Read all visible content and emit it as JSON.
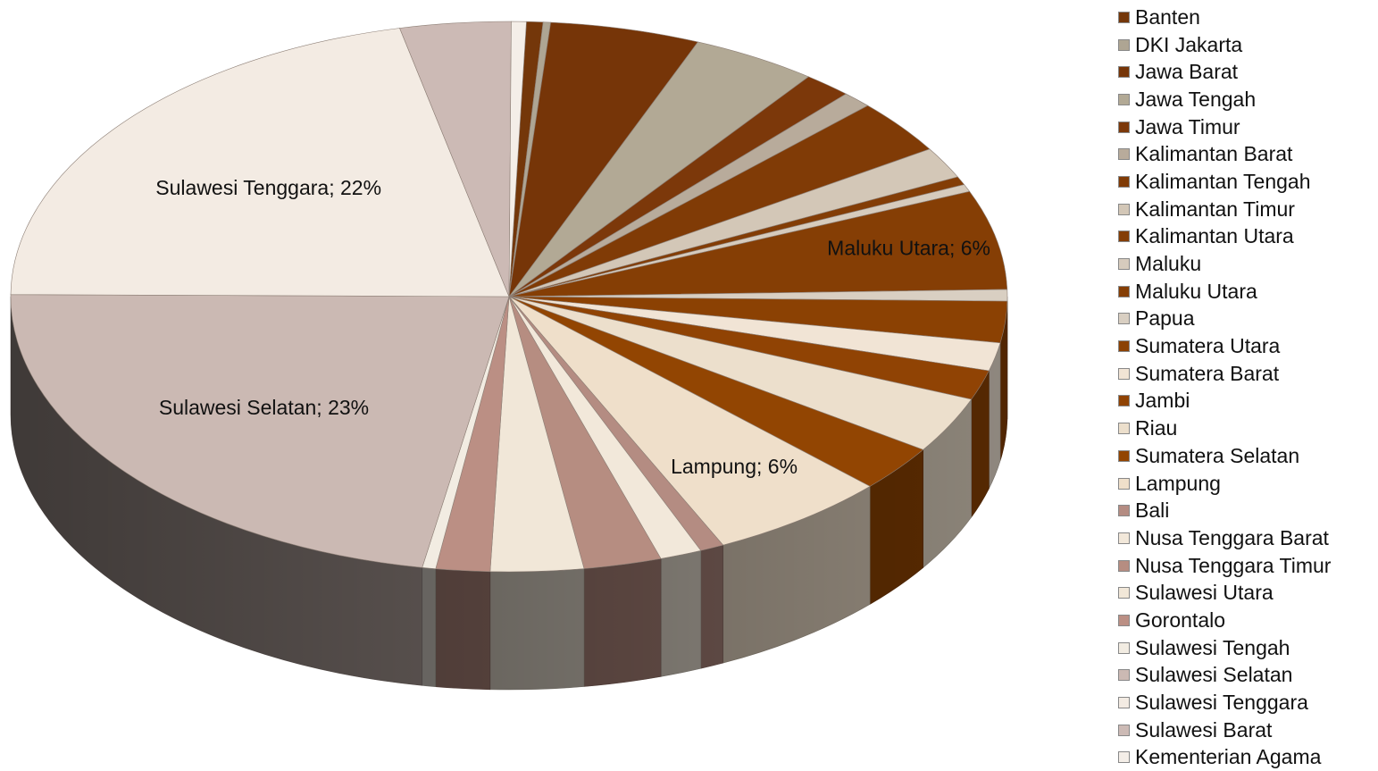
{
  "chart_data": {
    "type": "pie",
    "style": "3d-exploded-fan",
    "legend_position": "right",
    "data_unit": "percent",
    "slices": [
      {
        "name": "Banten",
        "value": 0.55,
        "color": "#74370a"
      },
      {
        "name": "DKI Jakarta",
        "value": 0.25,
        "color": "#aea593"
      },
      {
        "name": "Jawa Barat",
        "value": 5.0,
        "color": "#763508"
      },
      {
        "name": "Jawa Tengah",
        "value": 4.2,
        "color": "#b2a995"
      },
      {
        "name": "Jawa Timur",
        "value": 1.6,
        "color": "#7c380a"
      },
      {
        "name": "Kalimantan Barat",
        "value": 1.0,
        "color": "#b8ab9b"
      },
      {
        "name": "Kalimantan Tengah",
        "value": 3.3,
        "color": "#803b06"
      },
      {
        "name": "Kalimantan Timur",
        "value": 1.9,
        "color": "#d3c7b7"
      },
      {
        "name": "Kalimantan Utara",
        "value": 0.5,
        "color": "#833d06"
      },
      {
        "name": "Maluku",
        "value": 0.45,
        "color": "#d6cbbd"
      },
      {
        "name": "Maluku Utara",
        "value": 6.0,
        "color": "#853e05"
      },
      {
        "name": "Papua",
        "value": 0.7,
        "color": "#d9cfc2"
      },
      {
        "name": "Sumatera Utara",
        "value": 2.5,
        "color": "#8b4103"
      },
      {
        "name": "Sumatera Barat",
        "value": 1.7,
        "color": "#f1e4d5"
      },
      {
        "name": "Jambi",
        "value": 1.8,
        "color": "#904304"
      },
      {
        "name": "Riau",
        "value": 3.4,
        "color": "#ecdfcc"
      },
      {
        "name": "Sumatera Selatan",
        "value": 2.8,
        "color": "#924502"
      },
      {
        "name": "Lampung",
        "value": 6.0,
        "color": "#efdfca"
      },
      {
        "name": "Bali",
        "value": 0.8,
        "color": "#b48c82"
      },
      {
        "name": "Nusa Tenggara Barat",
        "value": 1.4,
        "color": "#f2e8da"
      },
      {
        "name": "Nusa Tenggara Timur",
        "value": 2.6,
        "color": "#b68d81"
      },
      {
        "name": "Sulawesi Utara",
        "value": 3.1,
        "color": "#f1e7d8"
      },
      {
        "name": "Gorontalo",
        "value": 1.8,
        "color": "#bb8f84"
      },
      {
        "name": "Sulawesi Tengah",
        "value": 0.45,
        "color": "#f2ece2"
      },
      {
        "name": "Sulawesi Selatan",
        "value": 23.0,
        "color": "#cbb9b3"
      },
      {
        "name": "Sulawesi Tenggara",
        "value": 22.0,
        "color": "#f3ebe3"
      },
      {
        "name": "Sulawesi Barat",
        "value": 3.7,
        "color": "#ccbab5"
      },
      {
        "name": "Kementerian Agama",
        "value": 0.5,
        "color": "#f4eee8"
      }
    ],
    "data_labels": [
      {
        "slice": "Sulawesi Tenggara",
        "text": "Sulawesi Tenggara; 22%"
      },
      {
        "slice": "Sulawesi Selatan",
        "text": "Sulawesi Selatan; 23%"
      },
      {
        "slice": "Maluku Utara",
        "text": "Maluku Utara; 6%"
      },
      {
        "slice": "Lampung",
        "text": "Lampung; 6%"
      }
    ]
  }
}
